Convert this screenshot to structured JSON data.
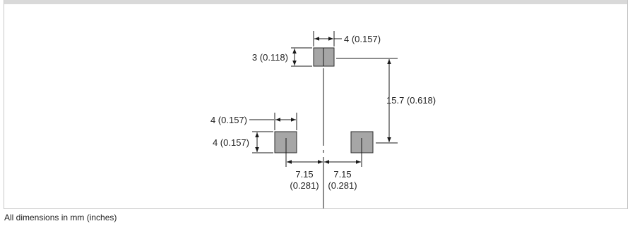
{
  "colors": {
    "pad_fill": "#a6a6a6",
    "pad_stroke": "#2b2b2b",
    "line": "#1a1a1a",
    "text": "#222222",
    "header_bar": "#d9d9d9",
    "border": "#c8c8c8"
  },
  "dimensions": {
    "top_pad_width": "4 (0.157)",
    "top_pad_height": "3 (0.118)",
    "pad_spacing_vertical": "15.7 (0.618)",
    "left_pad_width": "4 (0.157)",
    "left_pad_height": "4 (0.157)",
    "left_offset_mm": "7.15",
    "left_offset_in": "(0.281)",
    "right_offset_mm": "7.15",
    "right_offset_in": "(0.281)"
  },
  "footnote": "All dimensions in mm (inches)"
}
